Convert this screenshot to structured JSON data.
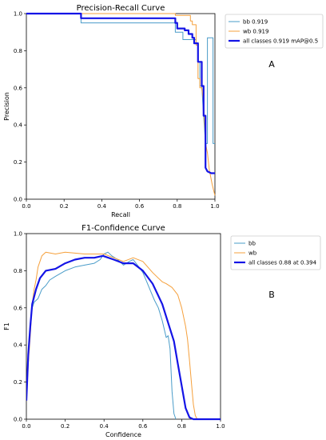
{
  "chart_data": [
    {
      "type": "line",
      "title": "Precision-Recall Curve",
      "xlabel": "Recall",
      "ylabel": "Precision",
      "xlim": [
        0,
        1
      ],
      "ylim": [
        0,
        1
      ],
      "xticks": [
        "0.0",
        "0.2",
        "0.4",
        "0.6",
        "0.8",
        "1.0"
      ],
      "yticks": [
        "0.0",
        "0.2",
        "0.4",
        "0.6",
        "0.8",
        "1.0"
      ],
      "legend_position": "top-right",
      "panel_label": "A",
      "series": [
        {
          "name": "bb 0.919",
          "color": "#4a9cc9",
          "width": 1,
          "points": [
            [
              0,
              1
            ],
            [
              0.29,
              1
            ],
            [
              0.29,
              0.95
            ],
            [
              0.79,
              0.95
            ],
            [
              0.79,
              0.9
            ],
            [
              0.83,
              0.9
            ],
            [
              0.83,
              0.86
            ],
            [
              0.9,
              0.86
            ],
            [
              0.9,
              0.84
            ],
            [
              0.91,
              0.84
            ],
            [
              0.91,
              0.74
            ],
            [
              0.92,
              0.74
            ],
            [
              0.92,
              0.61
            ],
            [
              0.93,
              0.61
            ],
            [
              0.94,
              0.45
            ],
            [
              0.95,
              0.3
            ],
            [
              0.96,
              0.3
            ],
            [
              0.96,
              0.87
            ],
            [
              0.99,
              0.87
            ],
            [
              0.99,
              0.3
            ],
            [
              1,
              0.3
            ]
          ]
        },
        {
          "name": "wb 0.919",
          "color": "#f5a03c",
          "width": 1,
          "points": [
            [
              0,
              1
            ],
            [
              0.79,
              1
            ],
            [
              0.79,
              0.99
            ],
            [
              0.87,
              0.99
            ],
            [
              0.87,
              0.96
            ],
            [
              0.88,
              0.96
            ],
            [
              0.88,
              0.94
            ],
            [
              0.9,
              0.94
            ],
            [
              0.9,
              0.83
            ],
            [
              0.91,
              0.83
            ],
            [
              0.91,
              0.65
            ],
            [
              0.92,
              0.65
            ],
            [
              0.92,
              0.6
            ],
            [
              0.93,
              0.6
            ],
            [
              0.94,
              0.52
            ],
            [
              0.95,
              0.3
            ],
            [
              0.96,
              0.25
            ],
            [
              0.97,
              0.16
            ],
            [
              0.985,
              0.08
            ],
            [
              1,
              0.02
            ]
          ]
        },
        {
          "name": "all classes 0.919 mAP@0.5",
          "color": "#1414e6",
          "width": 2.2,
          "points": [
            [
              0,
              1
            ],
            [
              0.29,
              1
            ],
            [
              0.29,
              0.975
            ],
            [
              0.79,
              0.975
            ],
            [
              0.79,
              0.95
            ],
            [
              0.8,
              0.95
            ],
            [
              0.8,
              0.92
            ],
            [
              0.84,
              0.92
            ],
            [
              0.84,
              0.91
            ],
            [
              0.86,
              0.91
            ],
            [
              0.86,
              0.89
            ],
            [
              0.88,
              0.89
            ],
            [
              0.88,
              0.87
            ],
            [
              0.89,
              0.87
            ],
            [
              0.89,
              0.84
            ],
            [
              0.91,
              0.84
            ],
            [
              0.91,
              0.74
            ],
            [
              0.93,
              0.74
            ],
            [
              0.93,
              0.61
            ],
            [
              0.94,
              0.61
            ],
            [
              0.94,
              0.45
            ],
            [
              0.95,
              0.45
            ],
            [
              0.95,
              0.17
            ],
            [
              0.96,
              0.15
            ],
            [
              0.98,
              0.14
            ],
            [
              1,
              0.14
            ]
          ]
        }
      ]
    },
    {
      "type": "line",
      "title": "F1-Confidence Curve",
      "xlabel": "Confidence",
      "ylabel": "F1",
      "xlim": [
        0,
        1
      ],
      "ylim": [
        0,
        1
      ],
      "xticks": [
        "0.0",
        "0.2",
        "0.4",
        "0.6",
        "0.8",
        "1.0"
      ],
      "yticks": [
        "0.0",
        "0.2",
        "0.4",
        "0.6",
        "0.8",
        "1.0"
      ],
      "legend_position": "top-right",
      "panel_label": "B",
      "series": [
        {
          "name": "bb",
          "color": "#4a9cc9",
          "width": 1,
          "points": [
            [
              0,
              0.1
            ],
            [
              0.01,
              0.35
            ],
            [
              0.02,
              0.52
            ],
            [
              0.03,
              0.6
            ],
            [
              0.04,
              0.63
            ],
            [
              0.06,
              0.65
            ],
            [
              0.08,
              0.7
            ],
            [
              0.1,
              0.72
            ],
            [
              0.12,
              0.75
            ],
            [
              0.15,
              0.77
            ],
            [
              0.2,
              0.8
            ],
            [
              0.25,
              0.82
            ],
            [
              0.3,
              0.83
            ],
            [
              0.35,
              0.84
            ],
            [
              0.38,
              0.86
            ],
            [
              0.4,
              0.89
            ],
            [
              0.42,
              0.9
            ],
            [
              0.44,
              0.88
            ],
            [
              0.47,
              0.86
            ],
            [
              0.5,
              0.83
            ],
            [
              0.53,
              0.85
            ],
            [
              0.55,
              0.86
            ],
            [
              0.58,
              0.82
            ],
            [
              0.6,
              0.79
            ],
            [
              0.62,
              0.74
            ],
            [
              0.64,
              0.69
            ],
            [
              0.66,
              0.64
            ],
            [
              0.68,
              0.6
            ],
            [
              0.7,
              0.53
            ],
            [
              0.72,
              0.44
            ],
            [
              0.73,
              0.45
            ],
            [
              0.74,
              0.38
            ],
            [
              0.75,
              0.15
            ],
            [
              0.76,
              0.03
            ],
            [
              0.77,
              0
            ]
          ]
        },
        {
          "name": "wb",
          "color": "#f5a03c",
          "width": 1,
          "points": [
            [
              0,
              0.1
            ],
            [
              0.01,
              0.3
            ],
            [
              0.02,
              0.45
            ],
            [
              0.03,
              0.62
            ],
            [
              0.04,
              0.7
            ],
            [
              0.05,
              0.75
            ],
            [
              0.06,
              0.82
            ],
            [
              0.08,
              0.88
            ],
            [
              0.1,
              0.9
            ],
            [
              0.15,
              0.89
            ],
            [
              0.2,
              0.9
            ],
            [
              0.3,
              0.89
            ],
            [
              0.4,
              0.89
            ],
            [
              0.45,
              0.87
            ],
            [
              0.5,
              0.85
            ],
            [
              0.55,
              0.87
            ],
            [
              0.6,
              0.85
            ],
            [
              0.65,
              0.79
            ],
            [
              0.68,
              0.76
            ],
            [
              0.7,
              0.74
            ],
            [
              0.72,
              0.73
            ],
            [
              0.75,
              0.71
            ],
            [
              0.78,
              0.67
            ],
            [
              0.8,
              0.6
            ],
            [
              0.82,
              0.5
            ],
            [
              0.83,
              0.43
            ],
            [
              0.84,
              0.32
            ],
            [
              0.85,
              0.2
            ],
            [
              0.86,
              0.08
            ],
            [
              0.87,
              0.02
            ],
            [
              0.88,
              0
            ]
          ]
        },
        {
          "name": "all classes 0.88 at 0.394",
          "color": "#1414e6",
          "width": 2.2,
          "points": [
            [
              0,
              0.1
            ],
            [
              0.01,
              0.35
            ],
            [
              0.02,
              0.5
            ],
            [
              0.03,
              0.62
            ],
            [
              0.05,
              0.7
            ],
            [
              0.07,
              0.76
            ],
            [
              0.1,
              0.8
            ],
            [
              0.15,
              0.81
            ],
            [
              0.2,
              0.84
            ],
            [
              0.25,
              0.86
            ],
            [
              0.3,
              0.87
            ],
            [
              0.35,
              0.87
            ],
            [
              0.394,
              0.88
            ],
            [
              0.45,
              0.86
            ],
            [
              0.5,
              0.84
            ],
            [
              0.55,
              0.84
            ],
            [
              0.6,
              0.8
            ],
            [
              0.65,
              0.73
            ],
            [
              0.7,
              0.62
            ],
            [
              0.73,
              0.52
            ],
            [
              0.76,
              0.42
            ],
            [
              0.78,
              0.3
            ],
            [
              0.8,
              0.18
            ],
            [
              0.82,
              0.06
            ],
            [
              0.84,
              0.01
            ],
            [
              0.86,
              0
            ],
            [
              1,
              0
            ]
          ]
        }
      ]
    }
  ]
}
